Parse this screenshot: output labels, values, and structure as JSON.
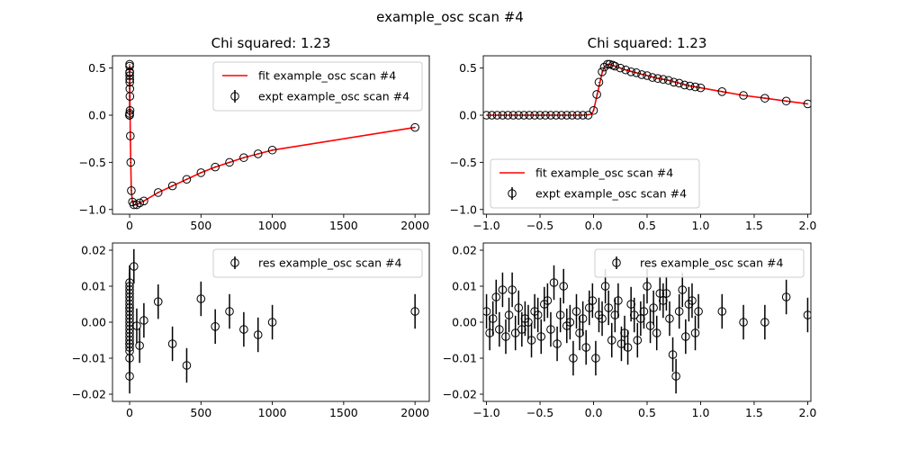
{
  "figure": {
    "title": "example_osc scan #4"
  },
  "chart_data": [
    {
      "type": "line",
      "panel": "top-left",
      "title": "Chi squared:  1.23",
      "xlim": [
        -120,
        2100
      ],
      "ylim": [
        -1.05,
        0.63
      ],
      "xticks": [
        0,
        500,
        1000,
        1500,
        2000
      ],
      "yticks": [
        -1.0,
        -0.5,
        0.0,
        0.5
      ],
      "xticklabels": [
        "0",
        "500",
        "1000",
        "1500",
        "2000"
      ],
      "yticklabels": [
        "−1.0",
        "−0.5",
        "0.0",
        "0.5"
      ],
      "legend": {
        "position": "upper-right",
        "entries": [
          "fit example_osc scan #4",
          "expt example_osc scan #4"
        ]
      },
      "series": [
        {
          "name": "fit example_osc scan #4",
          "kind": "line",
          "color": "#ff0000",
          "x": [
            -1.0,
            -0.5,
            -0.05,
            0.0,
            0.05,
            0.1,
            0.15,
            0.3,
            0.6,
            1.0,
            1.5,
            2.0,
            3.0,
            5.0,
            8.0,
            12.0,
            20.0,
            30.0,
            50.0,
            70.0,
            100.0,
            200.0,
            300.0,
            400.0,
            500.0,
            600.0,
            700.0,
            800.0,
            900.0,
            1000.0,
            2000.0
          ],
          "y": [
            0.0,
            0.0,
            0.0,
            0.05,
            0.25,
            0.45,
            0.53,
            0.5,
            0.42,
            0.35,
            0.28,
            0.2,
            0.05,
            -0.22,
            -0.5,
            -0.8,
            -0.92,
            -0.95,
            -0.95,
            -0.93,
            -0.91,
            -0.82,
            -0.75,
            -0.68,
            -0.61,
            -0.55,
            -0.5,
            -0.45,
            -0.41,
            -0.37,
            -0.13
          ]
        },
        {
          "name": "expt example_osc scan #4",
          "kind": "errorbar-markers",
          "x": [
            -1.0,
            -0.6,
            -0.2,
            0.0,
            0.1,
            0.15,
            0.2,
            0.4,
            0.6,
            0.8,
            1.0,
            1.5,
            2.0,
            3.0,
            5.0,
            8.0,
            12.0,
            20.0,
            30.0,
            50.0,
            70.0,
            100.0,
            200.0,
            300.0,
            400.0,
            500.0,
            600.0,
            700.0,
            800.0,
            900.0,
            1000.0,
            2000.0
          ],
          "y": [
            0.0,
            0.0,
            0.0,
            0.02,
            0.45,
            0.54,
            0.52,
            0.46,
            0.42,
            0.38,
            0.35,
            0.28,
            0.2,
            0.05,
            -0.22,
            -0.5,
            -0.8,
            -0.92,
            -0.95,
            -0.95,
            -0.93,
            -0.91,
            -0.82,
            -0.75,
            -0.68,
            -0.61,
            -0.55,
            -0.5,
            -0.45,
            -0.41,
            -0.37,
            -0.13
          ],
          "yerr": [
            0.003,
            0.003,
            0.003,
            0.003,
            0.003,
            0.003,
            0.003,
            0.003,
            0.003,
            0.003,
            0.003,
            0.003,
            0.003,
            0.003,
            0.003,
            0.003,
            0.003,
            0.003,
            0.003,
            0.003,
            0.003,
            0.003,
            0.003,
            0.003,
            0.003,
            0.003,
            0.003,
            0.003,
            0.003,
            0.003,
            0.003,
            0.003
          ]
        }
      ]
    },
    {
      "type": "line",
      "panel": "top-right",
      "title": "Chi squared:  1.23",
      "xlim": [
        -1.03,
        2.03
      ],
      "ylim": [
        -1.05,
        0.63
      ],
      "xticks": [
        -1.0,
        -0.5,
        0.0,
        0.5,
        1.0,
        1.5,
        2.0
      ],
      "yticks": [
        -1.0,
        -0.5,
        0.0,
        0.5
      ],
      "xticklabels": [
        "−1.0",
        "−0.5",
        "0.0",
        "0.5",
        "1.0",
        "1.5",
        "2.0"
      ],
      "yticklabels": [
        "−1.0",
        "−0.5",
        "0.0",
        "0.5"
      ],
      "legend": {
        "position": "lower-left",
        "entries": [
          "fit example_osc scan #4",
          "expt example_osc scan #4"
        ]
      },
      "series": [
        {
          "name": "fit example_osc scan #4",
          "kind": "line",
          "color": "#ff0000",
          "x": [
            -1.0,
            -0.5,
            -0.1,
            -0.02,
            0.0,
            0.02,
            0.05,
            0.08,
            0.1,
            0.13,
            0.15,
            0.2,
            0.3,
            0.4,
            0.5,
            0.6,
            0.7,
            0.8,
            0.9,
            1.0,
            1.2,
            1.4,
            1.6,
            1.8,
            2.0
          ],
          "y": [
            0.0,
            0.0,
            0.0,
            0.01,
            0.05,
            0.15,
            0.3,
            0.45,
            0.51,
            0.54,
            0.54,
            0.52,
            0.48,
            0.45,
            0.42,
            0.39,
            0.37,
            0.34,
            0.31,
            0.29,
            0.25,
            0.21,
            0.18,
            0.15,
            0.12
          ]
        },
        {
          "name": "expt example_osc scan #4",
          "kind": "errorbar-markers",
          "x": [
            -1.0,
            -0.95,
            -0.9,
            -0.85,
            -0.8,
            -0.75,
            -0.7,
            -0.65,
            -0.6,
            -0.55,
            -0.5,
            -0.45,
            -0.4,
            -0.35,
            -0.3,
            -0.25,
            -0.2,
            -0.15,
            -0.1,
            -0.05,
            0.0,
            0.03,
            0.05,
            0.08,
            0.1,
            0.13,
            0.15,
            0.18,
            0.2,
            0.25,
            0.3,
            0.35,
            0.4,
            0.45,
            0.5,
            0.55,
            0.6,
            0.65,
            0.7,
            0.75,
            0.8,
            0.85,
            0.9,
            0.95,
            1.0,
            1.2,
            1.4,
            1.6,
            1.8,
            2.0
          ],
          "y": [
            0.0,
            0.0,
            0.0,
            0.0,
            0.0,
            0.0,
            0.0,
            0.0,
            0.0,
            0.0,
            0.0,
            0.0,
            0.0,
            0.0,
            0.0,
            0.0,
            0.0,
            0.0,
            0.0,
            0.0,
            0.05,
            0.22,
            0.35,
            0.46,
            0.51,
            0.54,
            0.54,
            0.53,
            0.52,
            0.5,
            0.48,
            0.46,
            0.45,
            0.43,
            0.42,
            0.4,
            0.39,
            0.38,
            0.37,
            0.35,
            0.34,
            0.32,
            0.31,
            0.3,
            0.29,
            0.25,
            0.21,
            0.18,
            0.15,
            0.12
          ],
          "yerr": [
            0.003,
            0.003,
            0.003,
            0.003,
            0.003,
            0.003,
            0.003,
            0.003,
            0.003,
            0.003,
            0.003,
            0.003,
            0.003,
            0.003,
            0.003,
            0.003,
            0.003,
            0.003,
            0.003,
            0.003,
            0.003,
            0.003,
            0.003,
            0.003,
            0.003,
            0.003,
            0.003,
            0.003,
            0.003,
            0.003,
            0.003,
            0.003,
            0.003,
            0.003,
            0.003,
            0.003,
            0.003,
            0.003,
            0.003,
            0.003,
            0.003,
            0.003,
            0.003,
            0.003,
            0.003,
            0.003,
            0.003,
            0.003,
            0.003,
            0.003
          ]
        }
      ]
    },
    {
      "type": "scatter",
      "panel": "bottom-left",
      "title": "",
      "xlim": [
        -120,
        2100
      ],
      "ylim": [
        -0.022,
        0.022
      ],
      "xticks": [
        0,
        500,
        1000,
        1500,
        2000
      ],
      "yticks": [
        -0.02,
        -0.01,
        0.0,
        0.01,
        0.02
      ],
      "xticklabels": [
        "0",
        "500",
        "1000",
        "1500",
        "2000"
      ],
      "yticklabels": [
        "−0.02",
        "−0.01",
        "0.00",
        "0.01",
        "0.02"
      ],
      "legend": {
        "position": "upper-right",
        "entries": [
          "res example_osc scan #4"
        ]
      },
      "series": [
        {
          "name": "res example_osc scan #4",
          "kind": "errorbar-markers",
          "x": [
            0,
            0,
            0,
            0,
            0,
            0,
            0,
            0,
            0,
            0,
            0,
            0,
            0,
            0,
            0,
            0,
            0,
            0,
            0,
            0,
            0,
            0,
            0,
            0,
            30,
            50,
            70,
            100,
            200,
            300,
            400,
            500,
            600,
            700,
            800,
            900,
            1000,
            2000
          ],
          "y": [
            0.01,
            0.009,
            0.008,
            0.007,
            0.006,
            0.005,
            0.004,
            0.003,
            0.002,
            0.001,
            0.0,
            -0.001,
            -0.002,
            -0.003,
            -0.004,
            -0.005,
            -0.006,
            -0.007,
            -0.008,
            -0.01,
            -0.015,
            0.011,
            -0.006,
            0.004,
            0.0155,
            -0.001,
            -0.0065,
            0.0005,
            0.0057,
            -0.006,
            -0.012,
            0.0065,
            -0.0012,
            0.003,
            -0.002,
            -0.0035,
            0.0,
            0.003
          ],
          "yerr": [
            0.0048,
            0.0048,
            0.0048,
            0.0048,
            0.0048,
            0.0048,
            0.0048,
            0.0048,
            0.0048,
            0.0048,
            0.0048,
            0.0048,
            0.0048,
            0.0048,
            0.0048,
            0.0048,
            0.0048,
            0.0048,
            0.0048,
            0.0048,
            0.0048,
            0.0048,
            0.0048,
            0.0048,
            0.0048,
            0.0048,
            0.0048,
            0.0048,
            0.0048,
            0.0048,
            0.0048,
            0.0048,
            0.0048,
            0.0048,
            0.0048,
            0.0048,
            0.0048,
            0.0048
          ]
        }
      ]
    },
    {
      "type": "scatter",
      "panel": "bottom-right",
      "title": "",
      "xlim": [
        -1.03,
        2.03
      ],
      "ylim": [
        -0.022,
        0.022
      ],
      "xticks": [
        -1.0,
        -0.5,
        0.0,
        0.5,
        1.0,
        1.5,
        2.0
      ],
      "yticks": [
        -0.02,
        -0.01,
        0.0,
        0.01,
        0.02
      ],
      "xticklabels": [
        "−1.0",
        "−0.5",
        "0.0",
        "0.5",
        "1.0",
        "1.5",
        "2.0"
      ],
      "yticklabels": [
        "−0.02",
        "−0.01",
        "0.00",
        "0.01",
        "0.02"
      ],
      "legend": {
        "position": "upper-right",
        "entries": [
          "res example_osc scan #4"
        ]
      },
      "series": [
        {
          "name": "res example_osc scan #4",
          "kind": "errorbar-markers",
          "x": [
            -1.0,
            -0.97,
            -0.94,
            -0.91,
            -0.88,
            -0.85,
            -0.82,
            -0.79,
            -0.76,
            -0.73,
            -0.7,
            -0.67,
            -0.64,
            -0.61,
            -0.58,
            -0.55,
            -0.52,
            -0.49,
            -0.46,
            -0.43,
            -0.4,
            -0.37,
            -0.34,
            -0.31,
            -0.28,
            -0.25,
            -0.22,
            -0.19,
            -0.16,
            -0.13,
            -0.1,
            -0.07,
            -0.04,
            -0.01,
            0.02,
            0.05,
            0.08,
            0.11,
            0.14,
            0.17,
            0.2,
            0.23,
            0.26,
            0.29,
            0.32,
            0.35,
            0.38,
            0.41,
            0.44,
            0.47,
            0.5,
            0.53,
            0.56,
            0.59,
            0.62,
            0.65,
            0.68,
            0.71,
            0.74,
            0.77,
            0.8,
            0.83,
            0.86,
            0.89,
            0.92,
            0.95,
            0.98,
            1.2,
            1.4,
            1.6,
            1.8,
            2.0
          ],
          "y": [
            0.003,
            -0.003,
            0.001,
            0.007,
            -0.002,
            0.009,
            -0.004,
            0.002,
            0.009,
            -0.003,
            0.004,
            -0.002,
            0.001,
            0.0,
            -0.005,
            0.003,
            0.002,
            -0.004,
            0.005,
            0.006,
            -0.002,
            0.011,
            -0.006,
            0.002,
            0.01,
            -0.001,
            0.0,
            -0.01,
            0.003,
            -0.003,
            0.001,
            -0.007,
            0.004,
            0.006,
            -0.01,
            0.002,
            0.001,
            0.01,
            0.004,
            -0.005,
            0.002,
            0.006,
            -0.006,
            -0.003,
            -0.007,
            0.005,
            0.002,
            -0.005,
            0.001,
            0.003,
            0.01,
            -0.001,
            0.004,
            -0.003,
            0.008,
            0.006,
            0.008,
            0.001,
            -0.009,
            -0.015,
            0.003,
            0.009,
            -0.004,
            0.005,
            0.006,
            -0.003,
            0.003,
            0.003,
            0.0,
            0.0,
            0.007,
            0.002
          ],
          "yerr": [
            0.0048,
            0.0048,
            0.0048,
            0.0048,
            0.0048,
            0.0048,
            0.0048,
            0.0048,
            0.0048,
            0.0048,
            0.0048,
            0.0048,
            0.0048,
            0.0048,
            0.0048,
            0.0048,
            0.0048,
            0.0048,
            0.0048,
            0.0048,
            0.0048,
            0.0048,
            0.0048,
            0.0048,
            0.0048,
            0.0048,
            0.0048,
            0.0048,
            0.0048,
            0.0048,
            0.0048,
            0.0048,
            0.0048,
            0.0048,
            0.0048,
            0.0048,
            0.0048,
            0.0048,
            0.0048,
            0.0048,
            0.0048,
            0.0048,
            0.0048,
            0.0048,
            0.0048,
            0.0048,
            0.0048,
            0.0048,
            0.0048,
            0.0048,
            0.0048,
            0.0048,
            0.0048,
            0.0048,
            0.0048,
            0.0048,
            0.0048,
            0.0048,
            0.0048,
            0.0048,
            0.0048,
            0.0048,
            0.0048,
            0.0048,
            0.0048,
            0.0048,
            0.0048,
            0.0048,
            0.0048,
            0.0048,
            0.0048,
            0.0048
          ]
        }
      ]
    }
  ]
}
